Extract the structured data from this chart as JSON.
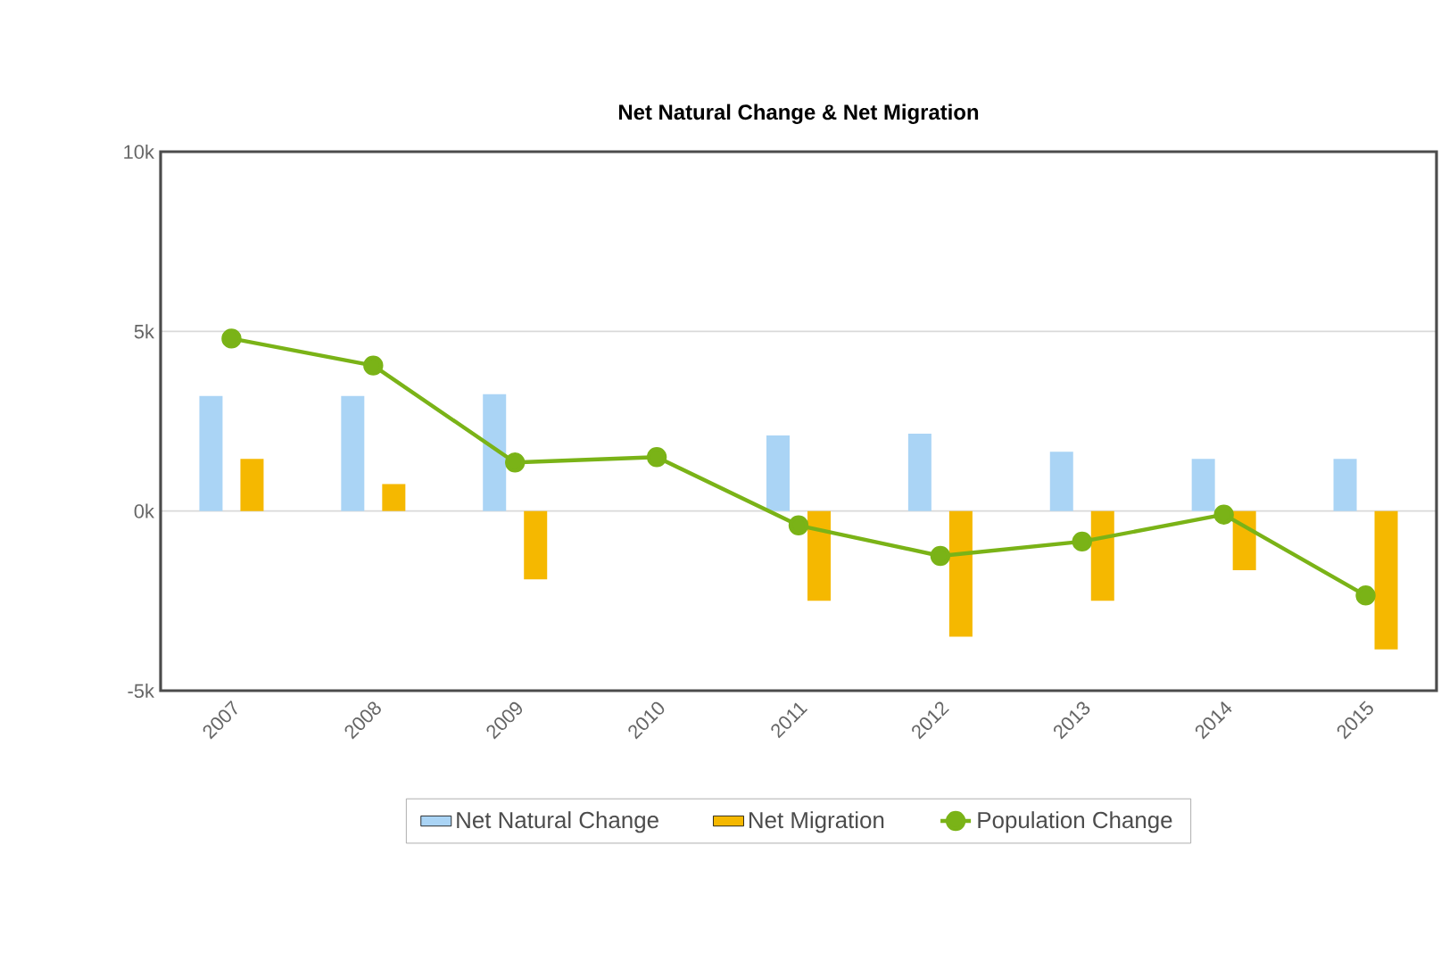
{
  "chart_data": {
    "type": "bar",
    "title": "Net Natural Change & Net Migration",
    "categories": [
      "2007",
      "2008",
      "2009",
      "2010",
      "2011",
      "2012",
      "2013",
      "2014",
      "2015"
    ],
    "series": [
      {
        "name": "Net Natural Change",
        "color": "#aad4f5",
        "values": [
          3200,
          3200,
          3250,
          null,
          2100,
          2150,
          1650,
          1450,
          1450
        ]
      },
      {
        "name": "Net Migration",
        "color": "#f5b800",
        "values": [
          1450,
          750,
          -1900,
          null,
          -2500,
          -3500,
          -2500,
          -1650,
          -3850
        ]
      },
      {
        "name": "Population Change",
        "type": "line",
        "color": "#7ab317",
        "values": [
          4800,
          4050,
          1350,
          1500,
          -400,
          -1250,
          -850,
          -100,
          -2350
        ]
      }
    ],
    "ylim": [
      -5000,
      10000
    ],
    "yticks": [
      {
        "value": -5000,
        "label": "-5k"
      },
      {
        "value": 0,
        "label": "0k"
      },
      {
        "value": 5000,
        "label": "5k"
      },
      {
        "value": 10000,
        "label": "10k"
      }
    ],
    "grid": "y",
    "legend": "bottom",
    "marker": "circle",
    "line_style": "solid"
  }
}
